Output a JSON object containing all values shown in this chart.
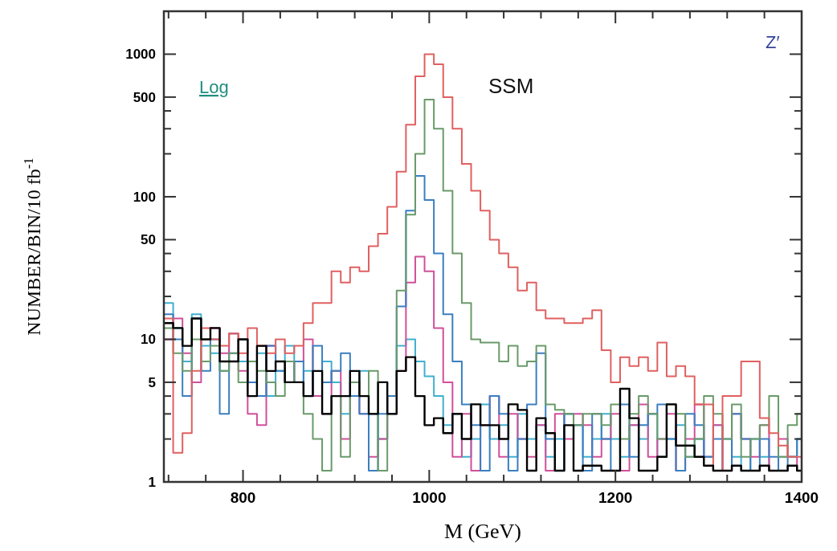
{
  "chart_data": {
    "type": "histogram",
    "xlabel": "M (GeV)",
    "ylabel": "NUMBER/BIN/10 fb$^{-1}$",
    "log": "y",
    "xlim": [
      715,
      1400
    ],
    "ylim": [
      1,
      2000
    ],
    "xticks": [
      {
        "value": 720,
        "label": null
      },
      {
        "value": 760,
        "label": null
      },
      800,
      {
        "value": 840,
        "label": null
      },
      {
        "value": 880,
        "label": null
      },
      {
        "value": 920,
        "label": null
      },
      {
        "value": 960,
        "label": null
      },
      1000,
      {
        "value": 1040,
        "label": null
      },
      {
        "value": 1080,
        "label": null
      },
      {
        "value": 1120,
        "label": null
      },
      {
        "value": 1160,
        "label": null
      },
      1200,
      {
        "value": 1240,
        "label": null
      },
      {
        "value": 1280,
        "label": null
      },
      {
        "value": 1320,
        "label": null
      },
      {
        "value": 1360,
        "label": null
      },
      1400
    ],
    "yticks": [
      1,
      {
        "value": 2,
        "label": null
      },
      {
        "value": 3,
        "label": null
      },
      {
        "value": 4,
        "label": null
      },
      5,
      10,
      {
        "value": 20,
        "label": null
      },
      {
        "value": 30,
        "label": null
      },
      {
        "value": 40,
        "label": null
      },
      50,
      100,
      {
        "value": 200,
        "label": null
      },
      {
        "value": 300,
        "label": null
      },
      {
        "value": 400,
        "label": null
      },
      500,
      1000
    ],
    "annotations": [
      "Log",
      "SSM",
      "Z′"
    ],
    "bins": [
      715,
      725,
      735,
      745,
      755,
      765,
      775,
      785,
      795,
      805,
      815,
      825,
      835,
      845,
      855,
      865,
      875,
      885,
      895,
      905,
      915,
      925,
      935,
      945,
      955,
      965,
      975,
      985,
      995,
      1005,
      1015,
      1025,
      1035,
      1045,
      1055,
      1065,
      1075,
      1085,
      1095,
      1105,
      1115,
      1125,
      1135,
      1145,
      1155,
      1165,
      1175,
      1185,
      1195,
      1205,
      1215,
      1225,
      1235,
      1245,
      1255,
      1265,
      1275,
      1285,
      1295,
      1305,
      1315,
      1325,
      1335,
      1345,
      1355,
      1365,
      1375,
      1385,
      1395,
      1405
    ],
    "series": [
      {
        "color": "#40b0d0",
        "values": [
          18,
          12,
          7,
          15,
          9,
          8,
          6,
          11,
          7,
          5,
          8,
          4,
          6,
          9,
          5,
          6,
          4,
          7,
          5,
          3,
          4,
          6,
          3,
          2,
          4,
          9,
          10,
          7,
          5.5,
          4,
          2.5,
          3,
          1.5,
          2,
          3.5,
          2,
          2.5,
          1.5,
          3,
          2,
          2.5,
          1.5,
          2,
          3,
          2.5,
          1.5,
          2,
          3,
          2,
          1.5,
          2.5,
          2,
          3,
          1.5,
          2,
          2.5,
          1.5,
          2,
          1.5,
          2.5,
          2,
          1.5,
          1.2,
          2,
          1.5,
          1.2,
          1.5,
          1.5,
          2
        ]
      },
      {
        "color": "#d0509a",
        "values": [
          10,
          14,
          8,
          5,
          7,
          12,
          8,
          11,
          6,
          3,
          2.5,
          9,
          7,
          5,
          7,
          10,
          4,
          3,
          6,
          2,
          5,
          3,
          1.5,
          2,
          4,
          6,
          25,
          38,
          30,
          12,
          5,
          1.5,
          3,
          1.2,
          2.5,
          4,
          1.5,
          3,
          2,
          1.5,
          2.5,
          1.2,
          3,
          2,
          3,
          2.5,
          1.5,
          2,
          3,
          1.2,
          2.5,
          3.5,
          1.5,
          2,
          3,
          1.2,
          2,
          3.5,
          1.5,
          2.5,
          1.2,
          3,
          2,
          1.5,
          2.5,
          1.2,
          2,
          1.5,
          1.2
        ]
      },
      {
        "color": "#3a7fc0",
        "values": [
          15,
          10,
          4,
          14,
          6,
          10,
          3,
          8,
          10,
          5,
          4,
          9,
          6,
          5,
          7,
          4,
          9,
          5,
          6,
          8,
          4,
          3,
          1.2,
          3,
          4,
          17,
          80,
          140,
          95,
          40,
          15,
          7,
          3.5,
          2.5,
          1.2,
          4,
          3,
          1.2,
          2,
          3.5,
          8,
          2,
          1.2,
          3,
          2.5,
          1.2,
          3,
          2,
          1.2,
          3.5,
          1.5,
          2.5,
          3,
          3.5,
          2,
          1.2,
          3,
          2.5,
          1.5,
          2,
          1.2,
          3,
          2,
          1.2,
          2,
          1.5,
          1.2,
          1.5,
          2
        ]
      },
      {
        "color": "#6a9a6a",
        "values": [
          12,
          8,
          6,
          10,
          7,
          9,
          6,
          8,
          5,
          7,
          6,
          5,
          4,
          7,
          5,
          3,
          2,
          1.2,
          4,
          1.5,
          5,
          4,
          6,
          1.2,
          3,
          22,
          75,
          200,
          480,
          300,
          110,
          40,
          18,
          10,
          9.5,
          9.5,
          7,
          9,
          6.5,
          7,
          9,
          3.5,
          3.2,
          3,
          2.5,
          3,
          3,
          2.5,
          3.5,
          2,
          3,
          4,
          3,
          2,
          3.5,
          3,
          1.5,
          2,
          4,
          3,
          2,
          3.5,
          1.5,
          2,
          2.5,
          4,
          1.5,
          2.5,
          3
        ]
      },
      {
        "color": "#e06060",
        "values": [
          14,
          1.6,
          2.2,
          6,
          12,
          10,
          9,
          11,
          8,
          12,
          9,
          8,
          10,
          8,
          9,
          13,
          18,
          18,
          30,
          25,
          32,
          30,
          45,
          55,
          85,
          150,
          320,
          700,
          1000,
          850,
          500,
          300,
          170,
          110,
          80,
          50,
          40,
          32,
          22,
          25,
          16,
          14,
          14,
          13,
          13,
          14,
          16,
          8.4,
          5,
          7.5,
          6.5,
          7.5,
          6,
          9.5,
          5.5,
          6.5,
          5.5,
          3.5,
          3.5,
          1.2,
          4,
          4,
          7,
          7,
          2.8,
          2.2,
          1.8,
          1.5,
          1.5
        ]
      },
      {
        "color": "#000000",
        "values": [
          13,
          12,
          9,
          14,
          10,
          12,
          7,
          7,
          10,
          4,
          9,
          6,
          7,
          5,
          5,
          4,
          6,
          3,
          4,
          4,
          6,
          4,
          3,
          5,
          3,
          6,
          7.5,
          4,
          2.5,
          2.8,
          2.2,
          3,
          2,
          3.5,
          2.5,
          2.5,
          2,
          3.5,
          3.2,
          1.2,
          2.8,
          2.2,
          1.2,
          2.5,
          1.2,
          1.3,
          1.3,
          1.2,
          1.2,
          4.5,
          2.8,
          1.2,
          1.2,
          1.5,
          3.5,
          1.8,
          1.8,
          1.5,
          1.3,
          1.2,
          1.2,
          1.3,
          1.2,
          1.2,
          1.3,
          1.2,
          1.2,
          1.3,
          1.2
        ]
      }
    ]
  }
}
